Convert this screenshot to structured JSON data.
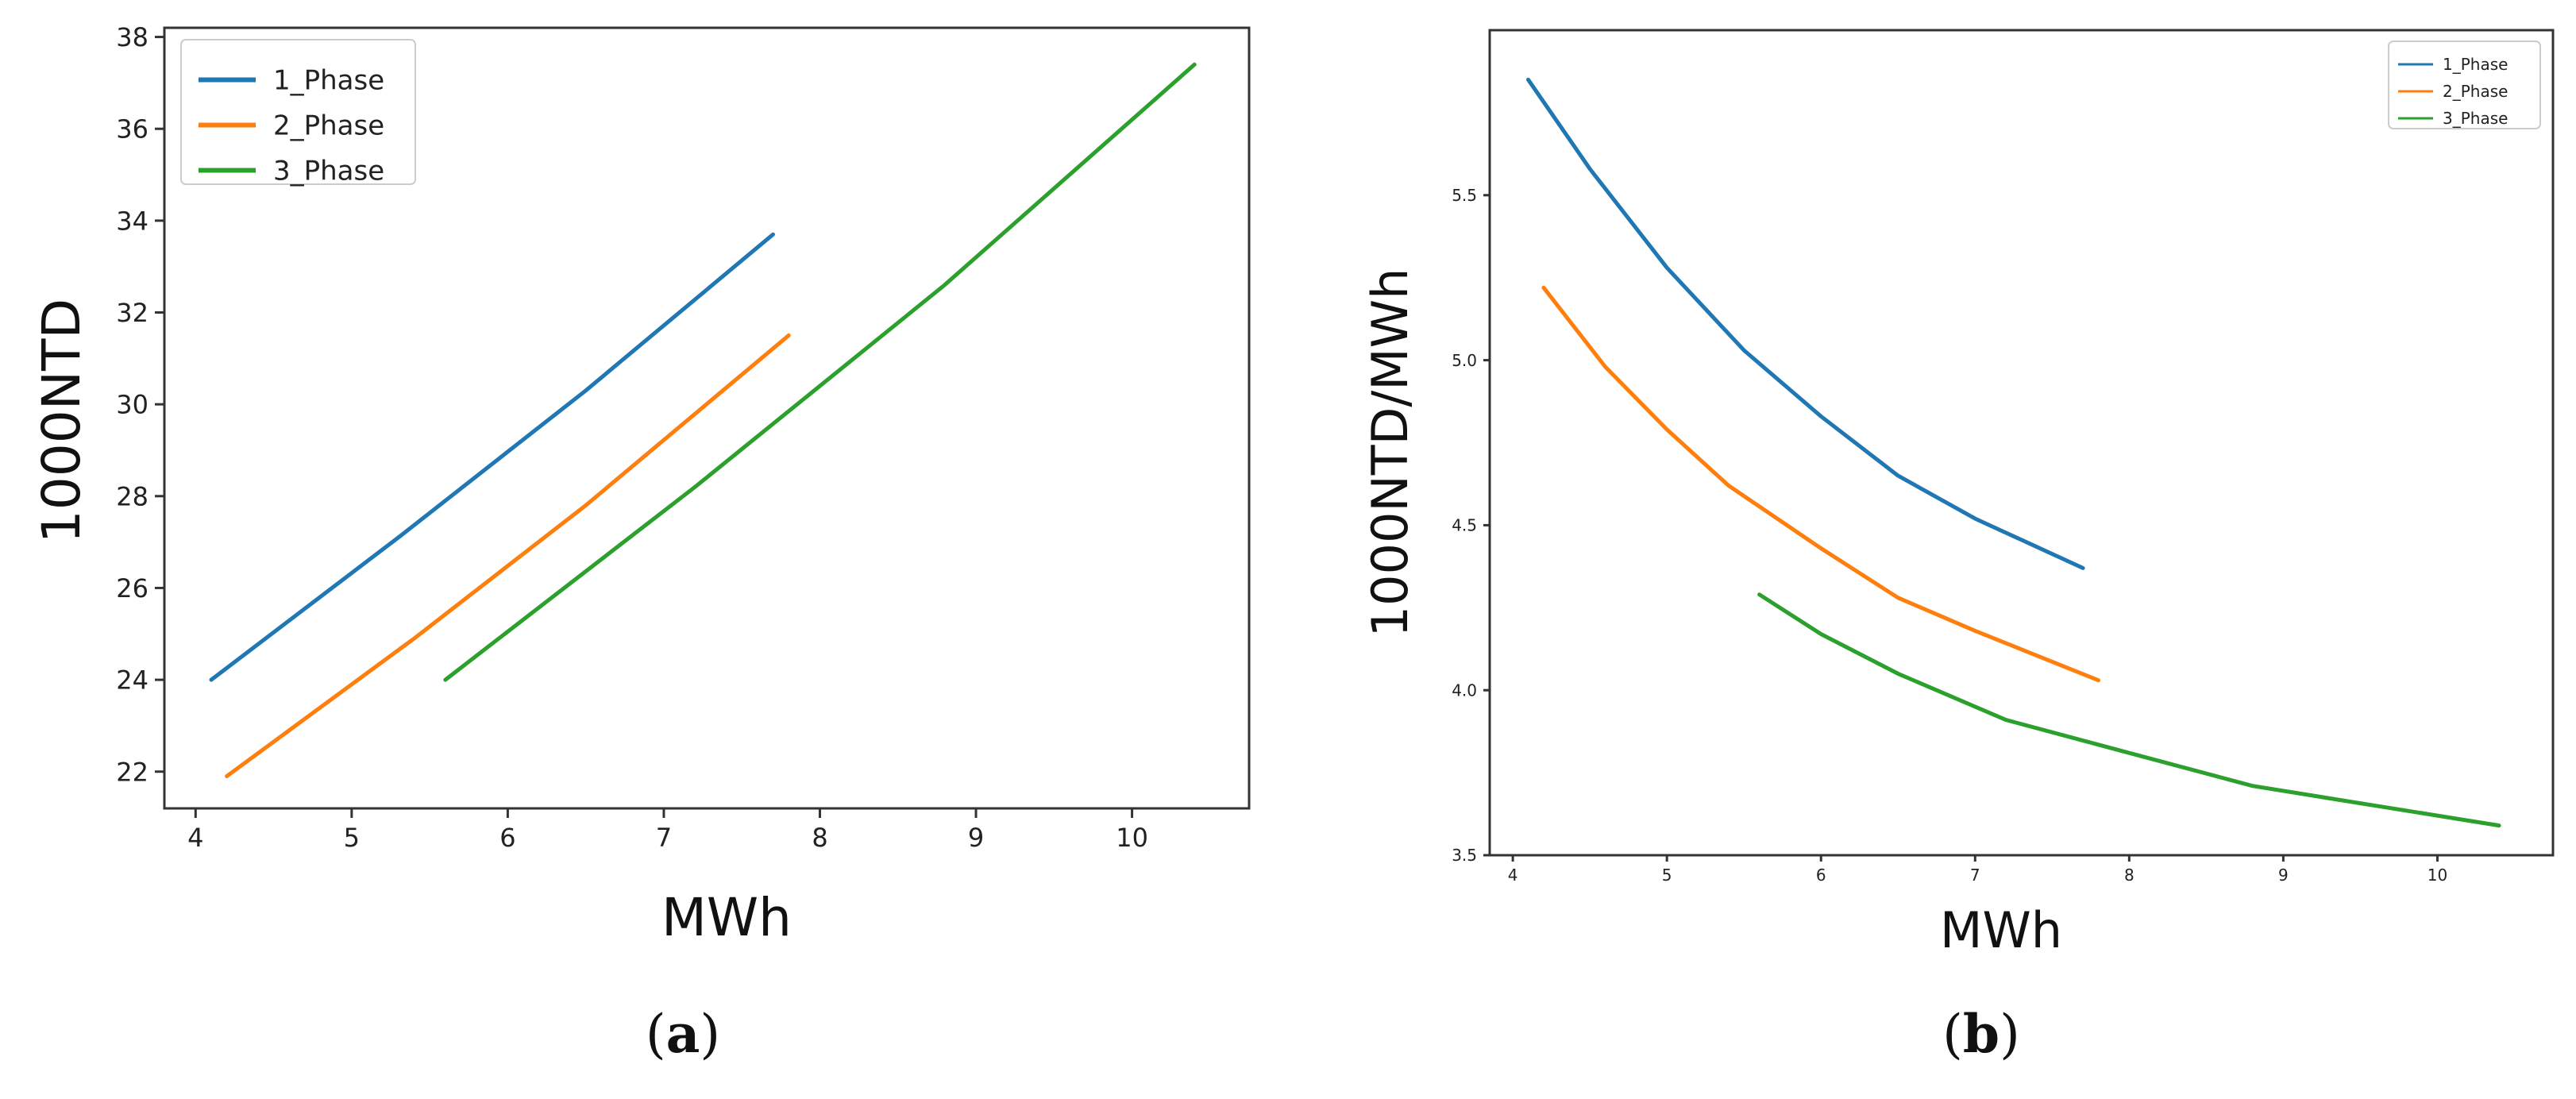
{
  "chart_data": [
    {
      "type": "line",
      "panel_label": "(a)",
      "panel_letter": "a",
      "xlabel": "MWh",
      "ylabel": "1000NTD",
      "xlim": [
        3.8,
        10.75
      ],
      "ylim": [
        21.2,
        38.2
      ],
      "x_ticks": [
        4,
        5,
        6,
        7,
        8,
        9,
        10
      ],
      "y_ticks": [
        22,
        24,
        26,
        28,
        30,
        32,
        34,
        36,
        38
      ],
      "x_tick_labels": [
        "4",
        "5",
        "6",
        "7",
        "8",
        "9",
        "10"
      ],
      "y_tick_labels": [
        "22",
        "24",
        "26",
        "28",
        "30",
        "32",
        "34",
        "36",
        "38"
      ],
      "legend_position": "top-left",
      "series": [
        {
          "name": "1_Phase",
          "color": "#1f77b4",
          "x": [
            4.1,
            5.3,
            6.5,
            7.7
          ],
          "y": [
            24.0,
            27.1,
            30.3,
            33.7
          ]
        },
        {
          "name": "2_Phase",
          "color": "#ff7f0e",
          "x": [
            4.2,
            5.4,
            6.5,
            7.8
          ],
          "y": [
            21.9,
            24.9,
            27.8,
            31.5
          ]
        },
        {
          "name": "3_Phase",
          "color": "#2ca02c",
          "x": [
            5.6,
            7.2,
            8.8,
            10.4
          ],
          "y": [
            24.0,
            28.2,
            32.6,
            37.4
          ]
        }
      ]
    },
    {
      "type": "line",
      "panel_label": "(b)",
      "panel_letter": "b",
      "xlabel": "MWh",
      "ylabel": "1000NTD/MWh",
      "xlim": [
        3.85,
        10.75
      ],
      "ylim": [
        3.5,
        6.0
      ],
      "x_ticks": [
        4,
        5,
        6,
        7,
        8,
        9,
        10
      ],
      "y_ticks": [
        3.5,
        4.0,
        4.5,
        5.0,
        5.5
      ],
      "x_tick_labels": [
        "4",
        "5",
        "6",
        "7",
        "8",
        "9",
        "10"
      ],
      "y_tick_labels": [
        "3.5",
        "4.0",
        "4.5",
        "5.0",
        "5.5"
      ],
      "legend_position": "top-right",
      "series": [
        {
          "name": "1_Phase",
          "color": "#1f77b4",
          "x": [
            4.1,
            4.5,
            5.0,
            5.5,
            6.0,
            6.5,
            7.0,
            7.7
          ],
          "y": [
            5.85,
            5.58,
            5.28,
            5.03,
            4.83,
            4.65,
            4.52,
            4.37
          ]
        },
        {
          "name": "2_Phase",
          "color": "#ff7f0e",
          "x": [
            4.2,
            4.6,
            5.0,
            5.4,
            6.0,
            6.5,
            7.0,
            7.8
          ],
          "y": [
            5.22,
            4.98,
            4.79,
            4.62,
            4.43,
            4.28,
            4.18,
            4.03
          ]
        },
        {
          "name": "3_Phase",
          "color": "#2ca02c",
          "x": [
            5.6,
            6.0,
            6.5,
            7.2,
            8.0,
            8.8,
            9.6,
            10.4
          ],
          "y": [
            4.29,
            4.17,
            4.05,
            3.91,
            3.81,
            3.71,
            3.65,
            3.59
          ]
        }
      ]
    }
  ]
}
